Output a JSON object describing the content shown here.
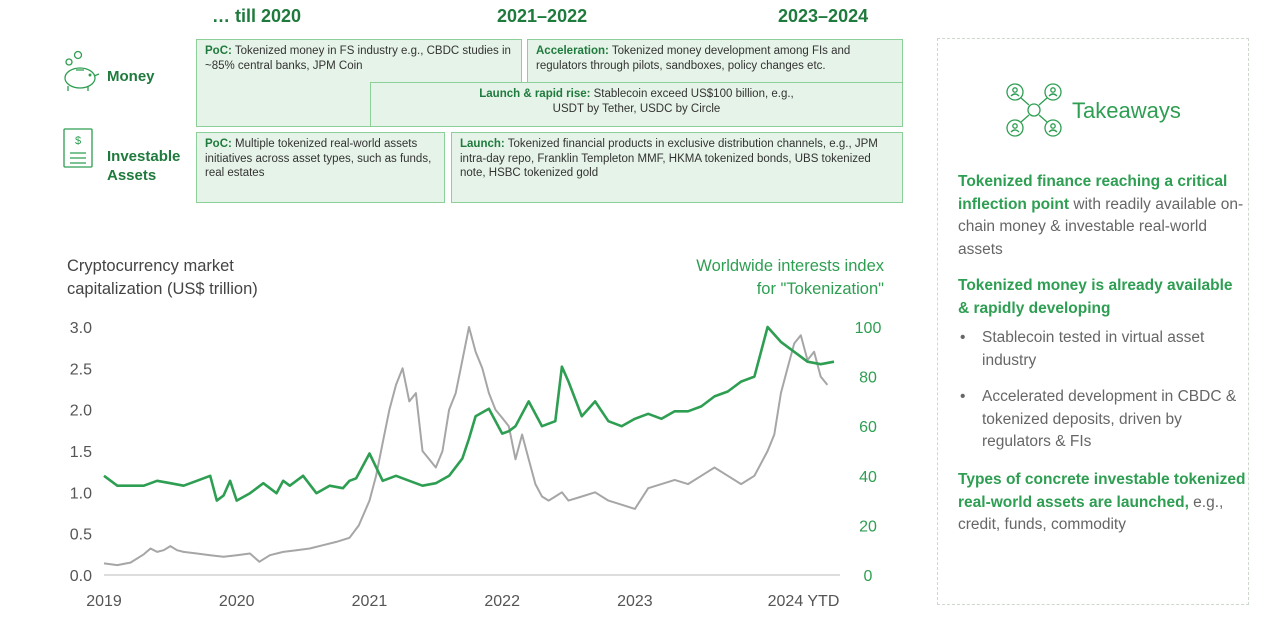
{
  "periods": [
    "… till 2020",
    "2021–2022",
    "2023–2024"
  ],
  "rows": {
    "money": "Money",
    "investable": [
      "Investable",
      "Assets"
    ]
  },
  "boxes": {
    "money_poc": {
      "head": "PoC:",
      "text": " Tokenized money in FS industry e.g., CBDC studies in ~85% central banks, JPM Coin"
    },
    "money_accel": {
      "head": "Acceleration:",
      "text": " Tokenized money development among FIs and regulators through pilots, sandboxes, policy changes etc."
    },
    "money_launch": {
      "head": "Launch & rapid rise:",
      "text": " Stablecoin exceed US$100 billion, e.g., USDT by Tether, USDC by Circle"
    },
    "assets_poc": {
      "head": "PoC:",
      "text": " Multiple tokenized real-world assets initiatives across asset types, such as funds, real estates"
    },
    "assets_launch": {
      "head": "Launch:",
      "text": " Tokenized financial products in exclusive distribution channels, e.g., JPM intra-day repo, Franklin Templeton MMF, HKMA tokenized bonds, UBS tokenized note, HSBC tokenized gold"
    }
  },
  "colors": {
    "green": "#2e9e52",
    "dark_green": "#1f7a3d",
    "box_fill": "#e6f3e8",
    "box_border": "#8ccf98",
    "grey_line": "#a6a6a6"
  },
  "chart_data": {
    "type": "line",
    "left_axis_label": [
      "Cryptocurrency market",
      "capitalization (US$ trillion)"
    ],
    "right_axis_label": [
      "Worldwide interests index",
      "for \"Tokenization\""
    ],
    "x_ticks": [
      "2019",
      "2020",
      "2021",
      "2022",
      "2023",
      "2024 YTD"
    ],
    "x_tick_years": [
      2019,
      2020,
      2021,
      2022,
      2023,
      2024
    ],
    "left_ticks": [
      "0.0",
      "0.5",
      "1.0",
      "1.5",
      "2.0",
      "2.5",
      "3.0"
    ],
    "right_ticks": [
      "0",
      "20",
      "40",
      "60",
      "80",
      "100"
    ],
    "ylim_left": [
      0,
      3
    ],
    "ylim_right": [
      0,
      100
    ],
    "xlim": [
      2019,
      2024.5
    ],
    "series": [
      {
        "axis": "left",
        "color": "#a6a6a6",
        "x": [
          2019.0,
          2019.1,
          2019.2,
          2019.3,
          2019.35,
          2019.4,
          2019.45,
          2019.5,
          2019.55,
          2019.6,
          2019.7,
          2019.8,
          2019.9,
          2020.0,
          2020.1,
          2020.17,
          2020.25,
          2020.35,
          2020.45,
          2020.55,
          2020.65,
          2020.75,
          2020.85,
          2020.92,
          2021.0,
          2021.05,
          2021.1,
          2021.15,
          2021.2,
          2021.25,
          2021.3,
          2021.35,
          2021.4,
          2021.45,
          2021.5,
          2021.55,
          2021.6,
          2021.65,
          2021.7,
          2021.75,
          2021.8,
          2021.85,
          2021.9,
          2021.95,
          2022.0,
          2022.05,
          2022.1,
          2022.15,
          2022.2,
          2022.25,
          2022.3,
          2022.35,
          2022.4,
          2022.45,
          2022.5,
          2022.6,
          2022.7,
          2022.8,
          2022.9,
          2023.0,
          2023.1,
          2023.2,
          2023.3,
          2023.4,
          2023.5,
          2023.6,
          2023.7,
          2023.8,
          2023.9,
          2024.0,
          2024.05,
          2024.1,
          2024.15,
          2024.2,
          2024.25,
          2024.3,
          2024.35,
          2024.4,
          2024.45
        ],
        "values": [
          0.14,
          0.12,
          0.15,
          0.25,
          0.32,
          0.28,
          0.3,
          0.35,
          0.3,
          0.28,
          0.26,
          0.24,
          0.22,
          0.24,
          0.26,
          0.16,
          0.24,
          0.28,
          0.3,
          0.32,
          0.36,
          0.4,
          0.45,
          0.6,
          0.9,
          1.2,
          1.6,
          2.0,
          2.3,
          2.5,
          2.1,
          2.2,
          1.5,
          1.4,
          1.3,
          1.5,
          2.0,
          2.2,
          2.6,
          3.0,
          2.7,
          2.5,
          2.2,
          2.0,
          1.9,
          1.8,
          1.4,
          1.7,
          1.4,
          1.1,
          0.95,
          0.9,
          0.95,
          1.0,
          0.9,
          0.95,
          1.0,
          0.9,
          0.85,
          0.8,
          1.05,
          1.1,
          1.15,
          1.1,
          1.2,
          1.3,
          1.2,
          1.1,
          1.2,
          1.5,
          1.7,
          2.2,
          2.5,
          2.8,
          2.9,
          2.6,
          2.7,
          2.4,
          2.3
        ]
      },
      {
        "axis": "right",
        "color": "#2e9e52",
        "x": [
          2019.0,
          2019.1,
          2019.2,
          2019.3,
          2019.4,
          2019.5,
          2019.6,
          2019.7,
          2019.8,
          2019.85,
          2019.9,
          2019.95,
          2020.0,
          2020.1,
          2020.2,
          2020.3,
          2020.35,
          2020.4,
          2020.5,
          2020.6,
          2020.7,
          2020.8,
          2020.85,
          2020.9,
          2021.0,
          2021.1,
          2021.2,
          2021.3,
          2021.4,
          2021.5,
          2021.6,
          2021.7,
          2021.75,
          2021.8,
          2021.9,
          2022.0,
          2022.05,
          2022.1,
          2022.2,
          2022.3,
          2022.35,
          2022.4,
          2022.45,
          2022.5,
          2022.6,
          2022.7,
          2022.8,
          2022.9,
          2023.0,
          2023.1,
          2023.2,
          2023.3,
          2023.4,
          2023.5,
          2023.6,
          2023.7,
          2023.8,
          2023.9,
          2024.0,
          2024.1,
          2024.2,
          2024.3,
          2024.4,
          2024.5
        ],
        "values": [
          40,
          36,
          36,
          36,
          38,
          37,
          36,
          38,
          40,
          30,
          32,
          38,
          30,
          33,
          37,
          33,
          38,
          36,
          40,
          33,
          36,
          35,
          38,
          39,
          49,
          38,
          40,
          38,
          36,
          37,
          40,
          47,
          55,
          64,
          67,
          57,
          58,
          60,
          70,
          60,
          61,
          62,
          84,
          78,
          64,
          70,
          62,
          60,
          63,
          65,
          63,
          66,
          66,
          68,
          72,
          74,
          78,
          80,
          100,
          94,
          90,
          86,
          85,
          86
        ]
      }
    ]
  },
  "takeaways": {
    "title": "Takeaways",
    "block1": {
      "hl": "Tokenized finance reaching a critical inflection point",
      "rest": " with readily available on-chain money & investable real-world assets"
    },
    "block2_hl": "Tokenized money is already available & rapidly developing",
    "bullets": [
      "Stablecoin tested in virtual asset industry",
      "Accelerated development in CBDC & tokenized deposits, driven by regulators & FIs"
    ],
    "block3": {
      "hl": "Types of concrete investable tokenized real-world assets are launched,",
      "rest": " e.g., credit, funds, commodity"
    }
  }
}
